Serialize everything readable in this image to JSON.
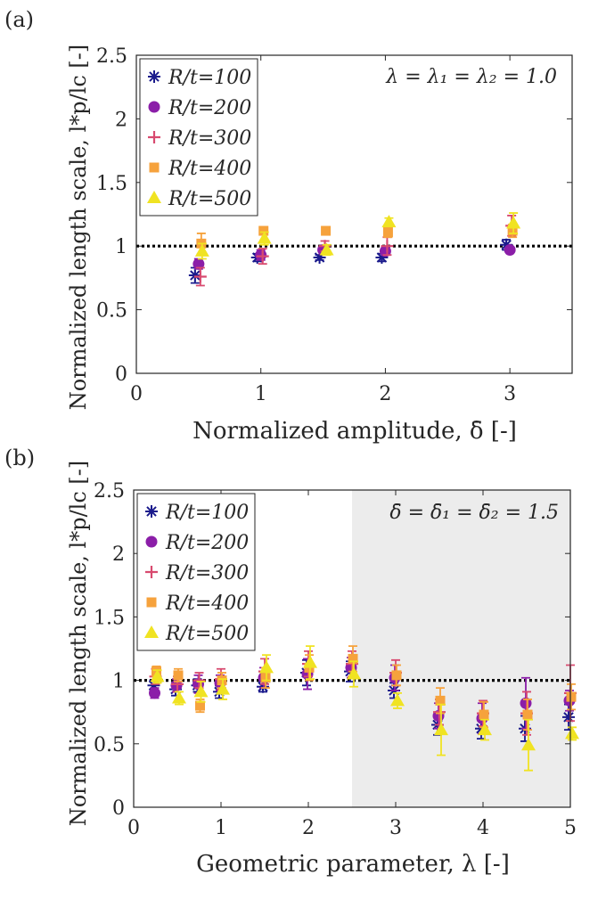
{
  "chart_data": [
    {
      "type": "scatter",
      "panel_label": "(a)",
      "xlabel": "Normalized amplitude, δ̄ [-]",
      "ylabel": "Normalized length scale, l*p/lc [-]",
      "annotation": "λ = λ₁ = λ₂ = 1.0",
      "xlim": [
        0,
        3.5
      ],
      "ylim": [
        0,
        2.5
      ],
      "xticks": [
        0,
        1,
        2,
        3
      ],
      "yticks": [
        0,
        0.5,
        1,
        1.5,
        2,
        2.5
      ],
      "xtick_labels": [
        "0",
        "1",
        "2",
        "3"
      ],
      "ytick_labels": [
        "0",
        "0.5",
        "1",
        "1.5",
        "2",
        "2.5"
      ],
      "reference_line": 1.0,
      "shaded_region": null,
      "legend": [
        "R/t=100",
        "R/t=200",
        "R/t=300",
        "R/t=400",
        "R/t=500"
      ],
      "legend_position": "top-left",
      "series": [
        {
          "name": "R/t=100",
          "color": "#1a1a8c",
          "marker": "asterisk",
          "x": [
            0.5,
            1,
            1.5,
            2,
            3
          ],
          "y": [
            0.77,
            0.91,
            0.91,
            0.91,
            1.01
          ],
          "err": [
            0.06,
            0.03,
            0.02,
            0.03,
            0.04
          ]
        },
        {
          "name": "R/t=200",
          "color": "#8b1ea8",
          "marker": "circle",
          "x": [
            0.5,
            1,
            1.5,
            2,
            3
          ],
          "y": [
            0.86,
            0.93,
            0.97,
            0.96,
            0.97
          ],
          "err": [
            0.04,
            0.04,
            0.03,
            0.03,
            0.02
          ]
        },
        {
          "name": "R/t=300",
          "color": "#d84a6f",
          "marker": "plus",
          "x": [
            0.5,
            1,
            1.5,
            2,
            3
          ],
          "y": [
            0.76,
            0.92,
            1.0,
            1.0,
            1.16
          ],
          "err": [
            0.07,
            0.06,
            0.04,
            0.07,
            0.08
          ]
        },
        {
          "name": "R/t=400",
          "color": "#f6a23c",
          "marker": "square",
          "x": [
            0.5,
            1,
            1.5,
            2,
            3
          ],
          "y": [
            1.02,
            1.12,
            1.12,
            1.11,
            1.12
          ],
          "err": [
            0.08,
            0.03,
            0.03,
            0.04,
            0.05
          ]
        },
        {
          "name": "R/t=500",
          "color": "#f0e322",
          "marker": "triangle",
          "x": [
            0.5,
            1,
            1.5,
            2,
            3
          ],
          "y": [
            0.96,
            1.06,
            0.97,
            1.19,
            1.18
          ],
          "err": [
            0.06,
            0.05,
            0.04,
            0.03,
            0.08
          ]
        }
      ]
    },
    {
      "type": "scatter",
      "panel_label": "(b)",
      "xlabel": "Geometric parameter, λ [-]",
      "ylabel": "Normalized length scale, l*p/lc [-]",
      "annotation": "δ̄ = δ̄₁ = δ̄₂ = 1.5",
      "xlim": [
        0,
        5
      ],
      "ylim": [
        0,
        2.5
      ],
      "xticks": [
        0,
        1,
        2,
        3,
        4,
        5
      ],
      "yticks": [
        0,
        0.5,
        1,
        1.5,
        2,
        2.5
      ],
      "xtick_labels": [
        "0",
        "1",
        "2",
        "3",
        "4",
        "5"
      ],
      "ytick_labels": [
        "0",
        "0.5",
        "1",
        "1.5",
        "2",
        "2.5"
      ],
      "reference_line": 1.0,
      "shaded_region": [
        2.5,
        5
      ],
      "legend": [
        "R/t=100",
        "R/t=200",
        "R/t=300",
        "R/t=400",
        "R/t=500"
      ],
      "legend_position": "top-left",
      "series": [
        {
          "name": "R/t=100",
          "color": "#1a1a8c",
          "marker": "asterisk",
          "x": [
            0.25,
            0.5,
            0.75,
            1,
            1.5,
            2,
            2.5,
            3,
            3.5,
            4,
            4.5,
            5
          ],
          "y": [
            0.96,
            0.93,
            0.96,
            0.91,
            0.95,
            1.06,
            1.07,
            0.92,
            0.65,
            0.62,
            0.62,
            0.71
          ],
          "err": [
            0.04,
            0.05,
            0.05,
            0.05,
            0.04,
            0.1,
            0.08,
            0.06,
            0.08,
            0.08,
            0.1,
            0.1
          ]
        },
        {
          "name": "R/t=200",
          "color": "#8b1ea8",
          "marker": "circle",
          "x": [
            0.25,
            0.5,
            0.75,
            1,
            1.5,
            2,
            2.5,
            3,
            3.5,
            4,
            4.5,
            5
          ],
          "y": [
            0.9,
            0.96,
            0.97,
            0.98,
            1.02,
            1.05,
            1.1,
            1.02,
            0.72,
            0.7,
            0.82,
            0.84
          ],
          "err": [
            0.04,
            0.05,
            0.07,
            0.06,
            0.08,
            0.12,
            0.08,
            0.1,
            0.1,
            0.12,
            0.2,
            0.08
          ]
        },
        {
          "name": "R/t=300",
          "color": "#d84a6f",
          "marker": "plus",
          "x": [
            0.25,
            0.5,
            0.75,
            1,
            1.5,
            2,
            2.5,
            3,
            3.5,
            4,
            4.5,
            5
          ],
          "y": [
            1.03,
            0.97,
            1.0,
            1.01,
            1.07,
            1.13,
            1.13,
            1.06,
            0.75,
            0.74,
            0.74,
            0.9
          ],
          "err": [
            0.06,
            0.06,
            0.06,
            0.08,
            0.1,
            0.1,
            0.1,
            0.1,
            0.1,
            0.1,
            0.17,
            0.22
          ]
        },
        {
          "name": "R/t=400",
          "color": "#f6a23c",
          "marker": "square",
          "x": [
            0.25,
            0.5,
            0.75,
            1,
            1.5,
            2,
            2.5,
            3,
            3.5,
            4,
            4.5,
            5
          ],
          "y": [
            1.07,
            1.04,
            0.8,
            1.0,
            1.02,
            1.1,
            1.17,
            1.04,
            0.84,
            0.73,
            0.73,
            0.87
          ],
          "err": [
            0.04,
            0.05,
            0.05,
            0.06,
            0.08,
            0.1,
            0.1,
            0.08,
            0.1,
            0.1,
            0.12,
            0.1
          ]
        },
        {
          "name": "R/t=500",
          "color": "#f0e322",
          "marker": "triangle",
          "x": [
            0.25,
            0.5,
            0.75,
            1,
            1.5,
            2,
            2.5,
            3,
            3.5,
            4,
            4.5,
            5
          ],
          "y": [
            1.03,
            0.86,
            0.91,
            0.93,
            1.1,
            1.14,
            1.05,
            0.84,
            0.61,
            0.61,
            0.49,
            0.58
          ],
          "err": [
            0.05,
            0.05,
            0.08,
            0.08,
            0.1,
            0.13,
            0.1,
            0.06,
            0.2,
            0.08,
            0.2,
            0.05
          ]
        }
      ]
    }
  ]
}
